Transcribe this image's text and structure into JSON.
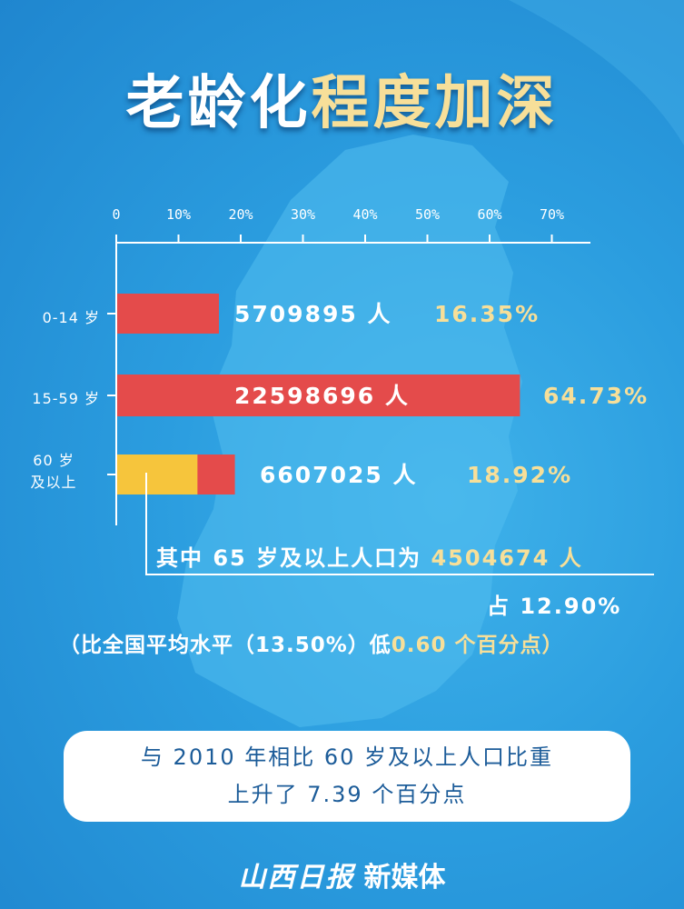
{
  "header": {
    "title_white": "老龄化",
    "title_gold": "程度加深"
  },
  "colors": {
    "bar": "#e44b4b",
    "highlight": "#f6c53c",
    "gold_text": "#f7df99",
    "axis": "#ffffff",
    "background": "#2b9ddf"
  },
  "chart_data": {
    "type": "bar",
    "orientation": "horizontal",
    "x_ticks": [
      "0",
      "10%",
      "20%",
      "30%",
      "40%",
      "50%",
      "60%",
      "70%"
    ],
    "xlim": [
      0,
      75
    ],
    "categories": [
      "0-14 岁",
      "15-59 岁",
      "60 岁\n及以上"
    ],
    "values": [
      16.35,
      64.73,
      18.92
    ],
    "population_labels": [
      "5709895 人",
      "22598696 人",
      "6607025 人"
    ],
    "percent_labels": [
      "16.35%",
      "64.73%",
      "18.92%"
    ],
    "sub_segment": {
      "category_index": 2,
      "value": 12.9,
      "label": "65 岁及以上"
    },
    "grid": false,
    "legend": "none"
  },
  "annotation": {
    "line1_prefix": "其中 65 岁及以上人口为",
    "line1_value": "4504674 人",
    "line2": "占 12.90%",
    "line3_prefix": "（比全国平均水平（13.50%）低",
    "line3_value": "0.60 个百分点）"
  },
  "summary_box": {
    "line1": "与 2010 年相比 60 岁及以上人口比重",
    "line2": "上升了 7.39 个百分点"
  },
  "brand": {
    "logo": "山西日报",
    "suffix": "新媒体"
  }
}
